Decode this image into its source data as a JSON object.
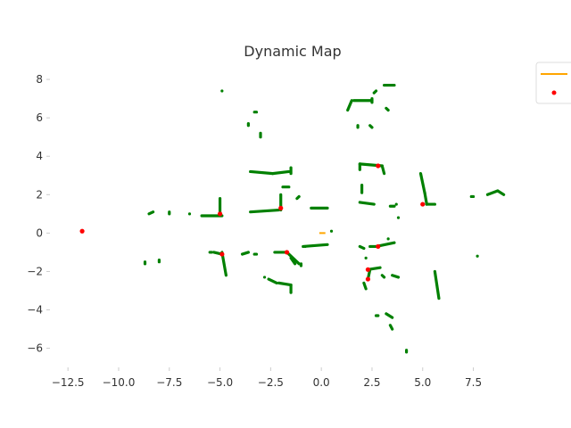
{
  "chart_data": {
    "type": "scatter",
    "title": "Dynamic Map",
    "xlabel": "",
    "ylabel": "",
    "xlim": [
      -13.3,
      9.5
    ],
    "ylim": [
      -6.9,
      8.7
    ],
    "x_ticks": [
      -12.5,
      -10.0,
      -7.5,
      -5.0,
      -2.5,
      0.0,
      2.5,
      5.0,
      7.5
    ],
    "x_tick_labels": [
      "−12.5",
      "−10.0",
      "−7.5",
      "−5.0",
      "−2.5",
      "0.0",
      "2.5",
      "5.0",
      "7.5"
    ],
    "y_ticks": [
      -6,
      -4,
      -2,
      0,
      2,
      4,
      6,
      8
    ],
    "y_tick_labels": [
      "−6",
      "−4",
      "−2",
      "0",
      "2",
      "4",
      "6",
      "8"
    ],
    "grid": false,
    "legend": {
      "placement": "top-right",
      "entries": [
        "",
        ""
      ]
    },
    "colors": {
      "obstacles": "#008000",
      "landmarks": "#ff0000",
      "robot": "#ffa500"
    },
    "robot_path": [
      [
        -0.1,
        0.0
      ],
      [
        0.2,
        0.0
      ]
    ],
    "obstacle_segments": [
      [
        -5.0,
        1.8,
        -5.0,
        1.0
      ],
      [
        -5.9,
        0.9,
        -4.9,
        0.9
      ],
      [
        -3.5,
        1.1,
        -2.1,
        1.2
      ],
      [
        -2.0,
        2.0,
        -2.0,
        1.2
      ],
      [
        -1.9,
        2.4,
        -1.6,
        2.4
      ],
      [
        -3.5,
        3.2,
        -2.4,
        3.1
      ],
      [
        -2.4,
        3.1,
        -1.6,
        3.2
      ],
      [
        -1.5,
        3.4,
        -1.5,
        3.1
      ],
      [
        -3.3,
        6.3,
        -3.2,
        6.3
      ],
      [
        -3.6,
        5.7,
        -3.6,
        5.6
      ],
      [
        -3.0,
        5.2,
        -3.0,
        5.0
      ],
      [
        -1.2,
        1.8,
        -1.1,
        1.9
      ],
      [
        -0.5,
        1.3,
        0.3,
        1.3
      ],
      [
        -8.5,
        1.0,
        -8.3,
        1.1
      ],
      [
        -7.5,
        1.0,
        -7.5,
        1.1
      ],
      [
        -0.9,
        -0.7,
        0.3,
        -0.6
      ],
      [
        -5.3,
        -1.0,
        -4.9,
        -1.1
      ],
      [
        -4.9,
        -1.0,
        -4.7,
        -2.2
      ],
      [
        -3.9,
        -1.1,
        -3.6,
        -1.0
      ],
      [
        -2.3,
        -1.0,
        -1.7,
        -1.0
      ],
      [
        -1.7,
        -1.0,
        -1.1,
        -1.6
      ],
      [
        -2.6,
        -2.4,
        -2.2,
        -2.6
      ],
      [
        -2.1,
        -2.6,
        -1.5,
        -2.7
      ],
      [
        -1.5,
        -2.7,
        -1.5,
        -3.1
      ],
      [
        1.9,
        3.6,
        3.0,
        3.5
      ],
      [
        3.0,
        3.5,
        3.1,
        3.1
      ],
      [
        1.9,
        3.6,
        1.9,
        3.3
      ],
      [
        1.9,
        1.6,
        2.6,
        1.5
      ],
      [
        2.0,
        2.5,
        2.0,
        2.1
      ],
      [
        3.4,
        1.4,
        3.6,
        1.4
      ],
      [
        1.3,
        6.4,
        1.5,
        6.9
      ],
      [
        1.6,
        6.9,
        2.5,
        6.9
      ],
      [
        2.5,
        7.0,
        2.5,
        6.8
      ],
      [
        2.6,
        7.3,
        2.7,
        7.4
      ],
      [
        2.4,
        5.6,
        2.5,
        5.5
      ],
      [
        3.1,
        7.7,
        3.6,
        7.7
      ],
      [
        3.2,
        6.5,
        3.3,
        6.4
      ],
      [
        1.8,
        5.6,
        1.8,
        5.5
      ],
      [
        4.9,
        3.1,
        5.1,
        2.1
      ],
      [
        5.1,
        2.1,
        5.2,
        1.5
      ],
      [
        5.2,
        1.5,
        5.6,
        1.5
      ],
      [
        7.4,
        1.9,
        7.5,
        1.9
      ],
      [
        8.2,
        2.0,
        8.7,
        2.2
      ],
      [
        8.7,
        2.2,
        9.0,
        2.0
      ],
      [
        2.4,
        -0.7,
        2.8,
        -0.7
      ],
      [
        2.7,
        -0.7,
        3.6,
        -0.5
      ],
      [
        1.9,
        -0.7,
        2.1,
        -0.8
      ],
      [
        2.3,
        -1.9,
        2.9,
        -1.8
      ],
      [
        2.3,
        -2.4,
        2.4,
        -1.9
      ],
      [
        2.1,
        -2.6,
        2.2,
        -2.9
      ],
      [
        3.5,
        -2.2,
        3.8,
        -2.3
      ],
      [
        3.0,
        -2.2,
        3.1,
        -2.3
      ],
      [
        5.6,
        -2.0,
        5.8,
        -3.4
      ],
      [
        3.2,
        -4.2,
        3.5,
        -4.4
      ],
      [
        2.7,
        -4.3,
        2.8,
        -4.3
      ],
      [
        3.4,
        -4.8,
        3.5,
        -5.0
      ],
      [
        4.2,
        -6.1,
        4.2,
        -6.2
      ],
      [
        -8.7,
        -1.5,
        -8.7,
        -1.6
      ],
      [
        -8.0,
        -1.4,
        -8.0,
        -1.5
      ],
      [
        -4.9,
        7.4,
        -4.9,
        7.4
      ],
      [
        -6.5,
        1.0,
        -6.5,
        1.0
      ],
      [
        -5.5,
        -1.0,
        -5.4,
        -1.0
      ],
      [
        -3.3,
        -1.1,
        -3.2,
        -1.1
      ],
      [
        -2.8,
        -2.3,
        -2.8,
        -2.3
      ],
      [
        -1.5,
        -1.3,
        -1.3,
        -1.6
      ],
      [
        -1.0,
        -1.6,
        -1.0,
        -1.7
      ],
      [
        -0.8,
        -0.7,
        -0.8,
        -0.7
      ],
      [
        0.5,
        0.1,
        0.5,
        0.1
      ],
      [
        3.7,
        1.5,
        3.7,
        1.5
      ],
      [
        3.3,
        -0.3,
        3.3,
        -0.3
      ],
      [
        7.7,
        -1.2,
        7.7,
        -1.2
      ],
      [
        3.8,
        0.8,
        3.8,
        0.8
      ],
      [
        2.2,
        -1.3,
        2.2,
        -1.3
      ]
    ],
    "landmarks": [
      [
        -11.8,
        0.1
      ],
      [
        -5.0,
        1.0
      ],
      [
        -2.0,
        1.3
      ],
      [
        -4.9,
        -1.1
      ],
      [
        -1.7,
        -1.0
      ],
      [
        2.8,
        3.5
      ],
      [
        5.0,
        1.5
      ],
      [
        2.8,
        -0.7
      ],
      [
        2.3,
        -1.9
      ],
      [
        2.3,
        -2.4
      ]
    ]
  }
}
